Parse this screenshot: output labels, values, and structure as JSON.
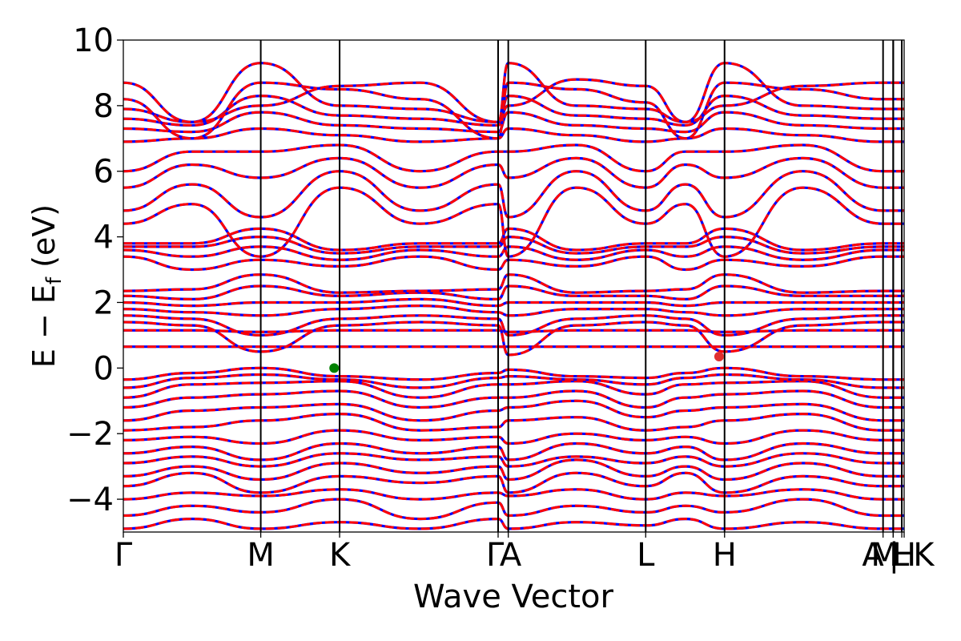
{
  "chart_data": {
    "type": "line",
    "title": "",
    "xlabel": "Wave Vector",
    "ylabel": "E − E",
    "ylabel_sub": "f",
    "ylabel_unit": " (eV)",
    "ylim": [
      -5,
      10
    ],
    "yticks": [
      {
        "value": 10,
        "label": "10"
      },
      {
        "value": 8,
        "label": "8"
      },
      {
        "value": 6,
        "label": "6"
      },
      {
        "value": 4,
        "label": "4"
      },
      {
        "value": 2,
        "label": "2"
      },
      {
        "value": 0,
        "label": "0"
      },
      {
        "value": -2,
        "label": "−2"
      },
      {
        "value": -4,
        "label": "−4"
      }
    ],
    "kpoints": [
      {
        "label": "Γ",
        "pos": 0.0
      },
      {
        "label": "M",
        "pos": 0.176
      },
      {
        "label": "K",
        "pos": 0.277
      },
      {
        "label": "Γ",
        "pos": 0.48
      },
      {
        "label": "A",
        "pos": 0.493
      },
      {
        "label": "L",
        "pos": 0.669
      },
      {
        "label": "H",
        "pos": 0.77
      },
      {
        "label": "A",
        "pos": 0.973
      },
      {
        "label": "L",
        "pos": 0.986
      },
      {
        "label": "M",
        "pos": 0.986
      },
      {
        "label": "H",
        "pos": 0.997
      },
      {
        "label": "K",
        "pos": 1.0
      }
    ],
    "xlabels": [
      {
        "text": "Γ",
        "pos": 0.0
      },
      {
        "text": "M",
        "pos": 0.176
      },
      {
        "text": "K",
        "pos": 0.277
      },
      {
        "text": "Γ",
        "pos": 0.476
      },
      {
        "text": "A",
        "pos": 0.496
      },
      {
        "text": "L",
        "pos": 0.669
      },
      {
        "text": "H",
        "pos": 0.77
      },
      {
        "text": "A",
        "pos": 0.96
      },
      {
        "text": "M",
        "pos": 0.975
      },
      {
        "text": "|",
        "pos": 0.987
      },
      {
        "text": "L",
        "pos": 0.995
      },
      {
        "text": "H",
        "pos": 1.0
      },
      {
        "text": "K",
        "pos": 1.025
      }
    ],
    "series": [
      {
        "color": "#0000ff",
        "style": "solid"
      },
      {
        "color": "#ff0000",
        "style": "dashed"
      }
    ],
    "vbm_marker": {
      "pos": 0.27,
      "energy": 0.0,
      "color": "#008000"
    },
    "cbm_marker": {
      "pos": 0.763,
      "energy": 0.35,
      "color": "#e03030"
    },
    "bands": [
      {
        "E": [
          -4.9,
          -4.6,
          -4.9,
          -4.7,
          -4.9,
          -4.6,
          -4.9,
          -4.7,
          -4.8
        ]
      },
      {
        "E": [
          -4.5,
          -4.2,
          -4.4,
          -4.0,
          -4.6,
          -4.1,
          -4.5,
          -4.2,
          -4.4
        ]
      },
      {
        "E": [
          -4.0,
          -3.8,
          -3.9,
          -3.7,
          -4.0,
          -3.8,
          -3.9,
          -3.7,
          -4.0
        ]
      },
      {
        "E": [
          -3.6,
          -3.2,
          -3.8,
          -3.3,
          -3.5,
          -3.3,
          -3.8,
          -3.2,
          -3.6
        ]
      },
      {
        "E": [
          -3.3,
          -3.0,
          -3.4,
          -2.9,
          -3.2,
          -3.0,
          -3.4,
          -2.8,
          -3.3
        ]
      },
      {
        "E": [
          -2.9,
          -2.7,
          -3.0,
          -2.6,
          -2.8,
          -2.7,
          -3.0,
          -2.7,
          -2.9
        ]
      },
      {
        "E": [
          -2.6,
          -2.4,
          -2.8,
          -2.3,
          -2.6,
          -2.4,
          -2.8,
          -2.3,
          -2.6
        ]
      },
      {
        "E": [
          -2.2,
          -2.1,
          -2.3,
          -1.9,
          -2.2,
          -2.1,
          -2.3,
          -2.0,
          -2.2
        ]
      },
      {
        "E": [
          -1.9,
          -1.8,
          -1.6,
          -1.4,
          -1.9,
          -1.8,
          -1.6,
          -1.5,
          -1.9
        ]
      },
      {
        "E": [
          -1.6,
          -1.3,
          -1.2,
          -1.1,
          -1.6,
          -1.3,
          -1.2,
          -1.0,
          -1.5
        ]
      },
      {
        "E": [
          -1.2,
          -0.9,
          -0.8,
          -0.7,
          -1.2,
          -0.9,
          -0.9,
          -0.7,
          -1.2
        ]
      },
      {
        "E": [
          -0.9,
          -0.5,
          -0.45,
          -0.4,
          -0.9,
          -0.5,
          -0.5,
          -0.4,
          -0.8
        ]
      },
      {
        "E": [
          -0.6,
          -0.3,
          -0.2,
          -0.35,
          -0.6,
          -0.3,
          -0.25,
          -0.35,
          -0.5
        ]
      },
      {
        "E": [
          -0.35,
          -0.15,
          0.0,
          -0.25,
          -0.35,
          -0.15,
          -0.05,
          -0.25,
          -0.3
        ]
      },
      {
        "E": [
          0.65,
          0.65,
          0.65,
          0.65,
          0.65,
          0.65,
          0.65,
          0.65,
          0.65
        ]
      },
      {
        "E": [
          1.15,
          1.15,
          1.1,
          1.15,
          1.15,
          1.15,
          1.1,
          1.15,
          1.15
        ]
      },
      {
        "E": [
          1.4,
          1.3,
          0.5,
          1.3,
          1.4,
          1.3,
          0.4,
          1.3,
          1.4
        ]
      },
      {
        "E": [
          1.6,
          1.5,
          1.0,
          1.5,
          1.6,
          1.5,
          1.0,
          1.5,
          1.6
        ]
      },
      {
        "E": [
          1.8,
          1.7,
          1.6,
          1.8,
          1.9,
          1.7,
          1.6,
          1.8,
          1.8
        ]
      },
      {
        "E": [
          2.0,
          1.9,
          2.0,
          2.0,
          2.1,
          1.9,
          2.0,
          2.0,
          2.0
        ]
      },
      {
        "E": [
          2.2,
          2.1,
          2.5,
          2.2,
          2.3,
          2.1,
          2.5,
          2.2,
          2.2
        ]
      },
      {
        "E": [
          2.35,
          2.4,
          2.85,
          2.3,
          2.35,
          2.4,
          2.85,
          2.3,
          2.35
        ]
      },
      {
        "E": [
          3.4,
          3.0,
          3.3,
          3.1,
          3.4,
          3.0,
          3.3,
          3.1,
          3.4
        ]
      },
      {
        "E": [
          3.6,
          3.4,
          3.7,
          3.3,
          3.6,
          3.4,
          3.7,
          3.3,
          3.6
        ]
      },
      {
        "E": [
          3.7,
          3.7,
          4.0,
          3.5,
          3.7,
          3.7,
          4.0,
          3.5,
          3.7
        ]
      },
      {
        "E": [
          3.8,
          3.8,
          4.25,
          3.6,
          3.8,
          3.8,
          4.25,
          3.6,
          3.8
        ]
      },
      {
        "E": [
          4.4,
          5.0,
          3.4,
          5.5,
          4.4,
          5.0,
          3.4,
          5.5,
          4.4
        ]
      },
      {
        "E": [
          4.8,
          5.6,
          4.6,
          6.0,
          4.8,
          5.6,
          4.6,
          6.0,
          4.8
        ]
      },
      {
        "E": [
          5.5,
          6.2,
          5.8,
          6.4,
          5.5,
          6.2,
          5.8,
          6.4,
          5.5
        ]
      },
      {
        "E": [
          6.0,
          6.6,
          6.6,
          6.8,
          6.0,
          6.6,
          6.6,
          6.8,
          6.0
        ]
      },
      {
        "E": [
          6.9,
          7.0,
          7.3,
          7.1,
          6.9,
          7.0,
          7.3,
          7.1,
          6.9
        ]
      },
      {
        "E": [
          7.3,
          7.2,
          7.8,
          7.4,
          7.3,
          7.2,
          7.8,
          7.4,
          7.3
        ]
      },
      {
        "E": [
          7.6,
          7.4,
          8.3,
          7.7,
          7.6,
          7.4,
          8.3,
          7.7,
          7.6
        ]
      },
      {
        "E": [
          7.9,
          7.5,
          9.3,
          8.0,
          7.9,
          7.5,
          9.3,
          8.0,
          7.9
        ]
      },
      {
        "E": [
          8.2,
          7.0,
          8.7,
          8.5,
          8.2,
          7.0,
          8.7,
          8.5,
          8.1
        ]
      },
      {
        "E": [
          8.7,
          7.5,
          8.0,
          8.6,
          8.7,
          7.5,
          8.0,
          8.8,
          8.6
        ]
      }
    ],
    "band_x": [
      0.0,
      0.088,
      0.176,
      0.277,
      0.38,
      0.48,
      0.493,
      0.58,
      0.669
    ]
  }
}
